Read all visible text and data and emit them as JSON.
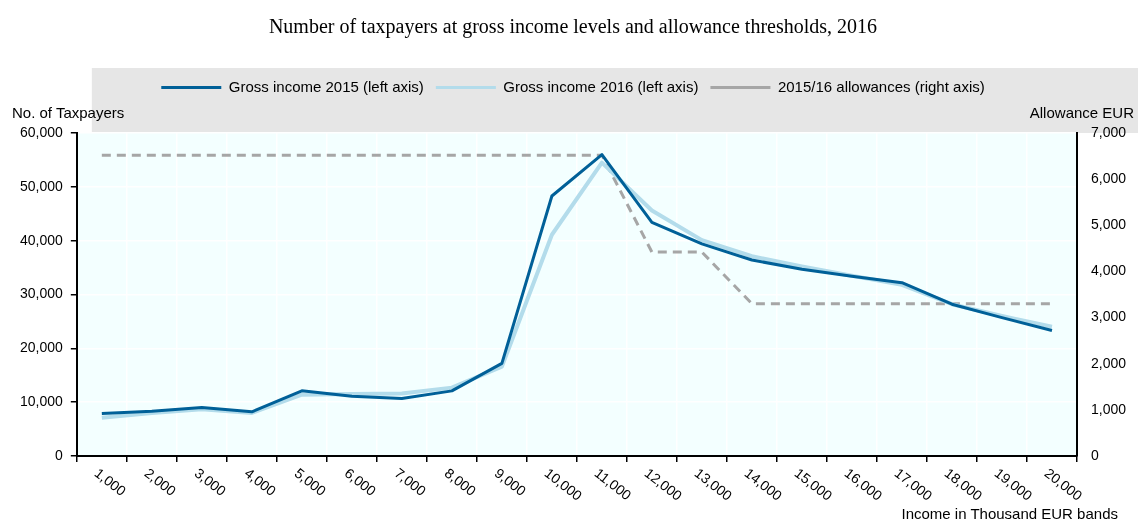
{
  "chart_data": {
    "type": "line",
    "title": "Number of taxpayers at gross income levels and allowance thresholds, 2016",
    "xlabel": "Income in Thousand EUR bands",
    "ylabel": "No. of Taxpayers",
    "y2label": "Allowance EUR",
    "categories": [
      "1,000",
      "2,000",
      "3,000",
      "4,000",
      "5,000",
      "6,000",
      "7,000",
      "8,000",
      "9,000",
      "10,000",
      "11,000",
      "12,000",
      "13,000",
      "14,000",
      "15,000",
      "16,000",
      "17,000",
      "18,000",
      "19,000",
      "20,000"
    ],
    "series": [
      {
        "name": "Gross income 2015 (left axis)",
        "color": "#006098",
        "values": [
          7900,
          8300,
          9000,
          8200,
          12100,
          11100,
          10700,
          12100,
          17200,
          48300,
          56000,
          43400,
          39400,
          36400,
          34700,
          33400,
          32200,
          28200,
          25700,
          23300
        ]
      },
      {
        "name": "Gross income 2016 (left axis)",
        "color": "#b3dceb",
        "values": [
          7100,
          8000,
          8700,
          8000,
          11400,
          11500,
          11600,
          12700,
          16600,
          41100,
          54500,
          45600,
          40100,
          37100,
          35200,
          33500,
          31800,
          28200,
          26000,
          24000
        ]
      },
      {
        "name": "2015/16 allowances (right axis)",
        "color": "#a6a6a6",
        "axis": "y2",
        "line_style": "dashed",
        "values": [
          6520,
          6520,
          6520,
          6520,
          6520,
          6520,
          6520,
          6520,
          6520,
          6520,
          6520,
          4420,
          4420,
          3300,
          3300,
          3300,
          3300,
          3300,
          3300,
          3300
        ]
      }
    ],
    "ylim": [
      0,
      60000
    ],
    "yticks": [
      0,
      {
        "value": 10000,
        "label": "10,000"
      },
      {
        "value": 20000,
        "label": "20,000"
      },
      {
        "value": 30000,
        "label": "30,000"
      },
      {
        "value": 40000,
        "label": "40,000"
      },
      {
        "value": 50000,
        "label": "50,000"
      },
      {
        "value": 60000,
        "label": "60,000"
      }
    ],
    "y2lim": [
      0,
      7000
    ],
    "y2ticks": [
      0,
      {
        "value": 1000,
        "label": "1,000"
      },
      {
        "value": 2000,
        "label": "2,000"
      },
      {
        "value": 3000,
        "label": "3,000"
      },
      {
        "value": 4000,
        "label": "4,000"
      },
      {
        "value": 5000,
        "label": "5,000"
      },
      {
        "value": 6000,
        "label": "6,000"
      },
      {
        "value": 7000,
        "label": "7,000"
      }
    ],
    "grid": true,
    "legend": "top",
    "marker": "none",
    "line_style": "solid"
  }
}
